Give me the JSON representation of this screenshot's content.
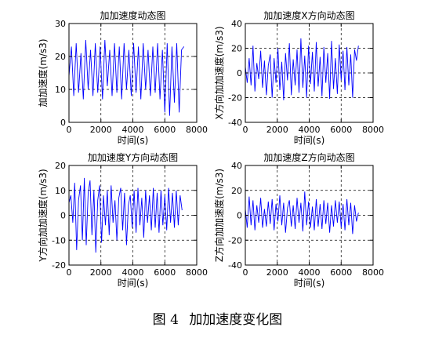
{
  "caption": {
    "prefix": "图 4",
    "text": "加加速度变化图"
  },
  "chart_data": [
    {
      "type": "line",
      "title": "加加速度动态图",
      "xlabel": "时间(s)",
      "ylabel": "加加速度(m/s3)",
      "xlim": [
        0,
        8000
      ],
      "ylim": [
        0,
        30
      ],
      "xticks": [
        0,
        2000,
        4000,
        6000,
        8000
      ],
      "yticks": [
        0,
        10,
        20,
        30
      ],
      "grid": true,
      "color": "#0000ff",
      "series": [
        {
          "x": [
            0,
            150,
            300,
            450,
            600,
            750,
            900,
            1050,
            1200,
            1350,
            1500,
            1650,
            1800,
            1950,
            2100,
            2250,
            2400,
            2550,
            2700,
            2850,
            3000,
            3150,
            3300,
            3450,
            3600,
            3750,
            3900,
            4050,
            4200,
            4350,
            4500,
            4650,
            4800,
            4950,
            5100,
            5250,
            5400,
            5550,
            5700,
            5850,
            6000,
            6150,
            6300,
            6450,
            6600,
            6750,
            6900,
            7050,
            7200
          ],
          "y": [
            14,
            23,
            8,
            24,
            9,
            21,
            7,
            25,
            10,
            22,
            8,
            24,
            9,
            23,
            7,
            25,
            11,
            22,
            8,
            24,
            9,
            23,
            7,
            24,
            10,
            22,
            8,
            24,
            9,
            23,
            7,
            24,
            10,
            22,
            8,
            23,
            9,
            24,
            7,
            22,
            3,
            24,
            2,
            23,
            6,
            24,
            3,
            22,
            23
          ]
        }
      ]
    },
    {
      "type": "line",
      "title": "加加速度X方向动态图",
      "xlabel": "时间(s)",
      "ylabel": "X方向加加速度(m/s3)",
      "xlim": [
        0,
        8000
      ],
      "ylim": [
        -40,
        40
      ],
      "xticks": [
        0,
        2000,
        4000,
        6000,
        8000
      ],
      "yticks": [
        -40,
        -20,
        0,
        20,
        40
      ],
      "grid": true,
      "color": "#0000ff",
      "series": [
        {
          "x": [
            0,
            120,
            240,
            360,
            480,
            600,
            720,
            840,
            960,
            1080,
            1200,
            1320,
            1440,
            1560,
            1680,
            1800,
            1920,
            2040,
            2160,
            2280,
            2400,
            2520,
            2640,
            2760,
            2880,
            3000,
            3120,
            3240,
            3360,
            3480,
            3600,
            3720,
            3840,
            3960,
            4080,
            4200,
            4320,
            4440,
            4560,
            4680,
            4800,
            4920,
            5040,
            5160,
            5280,
            5400,
            5520,
            5640,
            5760,
            5880,
            6000,
            6120,
            6240,
            6360,
            6480,
            6600,
            6720,
            6840,
            6960,
            7080
          ],
          "y": [
            5,
            -8,
            12,
            -10,
            22,
            -15,
            8,
            -5,
            18,
            -12,
            10,
            -18,
            6,
            15,
            -20,
            12,
            -8,
            20,
            -14,
            9,
            -22,
            16,
            -6,
            24,
            -18,
            11,
            -10,
            19,
            -16,
            28,
            -12,
            14,
            -20,
            22,
            -9,
            17,
            -15,
            25,
            -11,
            13,
            -19,
            21,
            -8,
            16,
            -21,
            26,
            -13,
            12,
            -17,
            23,
            -6,
            18,
            -14,
            21,
            -10,
            15,
            -20,
            19,
            10,
            22
          ]
        }
      ]
    },
    {
      "type": "line",
      "title": "加加速度Y方向动态图",
      "xlabel": "时间(s)",
      "ylabel": "Y方向加加速度(m/s3)",
      "xlim": [
        0,
        8000
      ],
      "ylim": [
        -20,
        20
      ],
      "xticks": [
        0,
        2000,
        4000,
        6000,
        8000
      ],
      "yticks": [
        -20,
        -10,
        0,
        10,
        20
      ],
      "grid": true,
      "color": "#0000ff",
      "series": [
        {
          "x": [
            0,
            120,
            240,
            360,
            480,
            600,
            720,
            840,
            960,
            1080,
            1200,
            1320,
            1440,
            1560,
            1680,
            1800,
            1920,
            2040,
            2160,
            2280,
            2400,
            2520,
            2640,
            2760,
            2880,
            3000,
            3120,
            3240,
            3360,
            3480,
            3600,
            3720,
            3840,
            3960,
            4080,
            4200,
            4320,
            4440,
            4560,
            4680,
            4800,
            4920,
            5040,
            5160,
            5280,
            5400,
            5520,
            5640,
            5760,
            5880,
            6000,
            6120,
            6240,
            6360,
            6480,
            6600,
            6720,
            6840,
            6960,
            7080
          ],
          "y": [
            5,
            8,
            -3,
            13,
            -14,
            6,
            12,
            -10,
            15,
            -12,
            9,
            14,
            -8,
            10,
            -15,
            6,
            12,
            -11,
            8,
            -4,
            10,
            -8,
            12,
            -3,
            6,
            -10,
            7,
            11,
            -6,
            9,
            -12,
            4,
            8,
            -5,
            10,
            -7,
            11,
            -4,
            7,
            -9,
            10,
            -3,
            8,
            -6,
            11,
            -5,
            9,
            -7,
            10,
            -4,
            8,
            -6,
            11,
            -3,
            9,
            -5,
            10,
            -4,
            8,
            2
          ]
        }
      ]
    },
    {
      "type": "line",
      "title": "加加速度Z方向动态图",
      "xlabel": "时间(s)",
      "ylabel": "Z方向加加速度(m/s3)",
      "xlim": [
        0,
        8000
      ],
      "ylim": [
        -40,
        40
      ],
      "xticks": [
        0,
        2000,
        4000,
        6000,
        8000
      ],
      "yticks": [
        -40,
        -20,
        0,
        20,
        40
      ],
      "grid": true,
      "color": "#0000ff",
      "series": [
        {
          "x": [
            0,
            120,
            240,
            360,
            480,
            600,
            720,
            840,
            960,
            1080,
            1200,
            1320,
            1440,
            1560,
            1680,
            1800,
            1920,
            2040,
            2160,
            2280,
            2400,
            2520,
            2640,
            2760,
            2880,
            3000,
            3120,
            3240,
            3360,
            3480,
            3600,
            3720,
            3840,
            3960,
            4080,
            4200,
            4320,
            4440,
            4560,
            4680,
            4800,
            4920,
            5040,
            5160,
            5280,
            5400,
            5520,
            5640,
            5760,
            5880,
            6000,
            6120,
            6240,
            6360,
            6480,
            6600,
            6720,
            6840,
            6960,
            7080
          ],
          "y": [
            5,
            -10,
            15,
            -8,
            12,
            -12,
            8,
            -6,
            14,
            -10,
            5,
            -9,
            11,
            -7,
            13,
            -12,
            9,
            -5,
            16,
            -8,
            10,
            -14,
            6,
            12,
            -9,
            8,
            -11,
            14,
            -6,
            10,
            -13,
            19,
            -8,
            11,
            -10,
            7,
            -12,
            13,
            -9,
            9,
            -11,
            12,
            -7,
            10,
            -14,
            8,
            -9,
            12,
            -6,
            11,
            -10,
            9,
            -12,
            13,
            -8,
            10,
            -15,
            8,
            -5,
            2
          ]
        }
      ]
    }
  ]
}
